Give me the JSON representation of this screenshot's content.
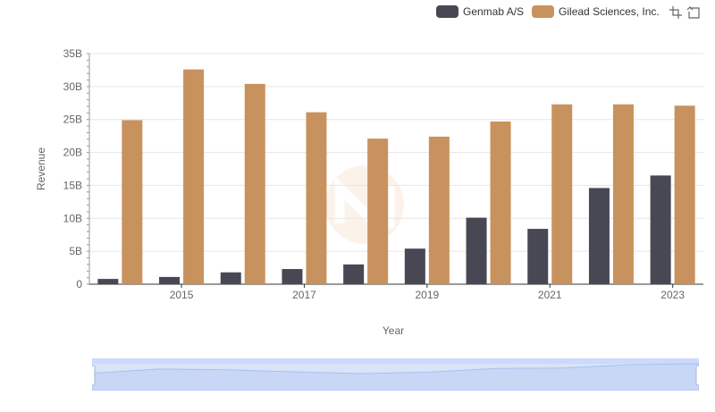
{
  "legend": [
    {
      "name": "Genmab A/S",
      "color": "#484855"
    },
    {
      "name": "Gilead Sciences, Inc.",
      "color": "#c8925e"
    }
  ],
  "toolbox": {
    "icons": [
      "zoom-icon",
      "restore-icon"
    ]
  },
  "chart_data": {
    "type": "bar",
    "title": "",
    "xlabel": "Year",
    "ylabel": "Revenue",
    "categories": [
      "2014",
      "2015",
      "2016",
      "2017",
      "2018",
      "2019",
      "2020",
      "2021",
      "2022",
      "2023"
    ],
    "x_tick_labels": [
      "2015",
      "2017",
      "2019",
      "2021",
      "2023"
    ],
    "y_ticks": [
      0,
      5,
      10,
      15,
      20,
      25,
      30,
      35
    ],
    "y_tick_labels": [
      "0",
      "5B",
      "10B",
      "15B",
      "20B",
      "25B",
      "30B",
      "35B"
    ],
    "ylim": [
      0,
      35
    ],
    "unit": "billions",
    "grid": true,
    "legend_position": "top-right",
    "series": [
      {
        "name": "Genmab A/S",
        "color": "#484855",
        "values": [
          0.8,
          1.1,
          1.8,
          2.3,
          3.0,
          5.4,
          10.1,
          8.4,
          14.6,
          16.5
        ]
      },
      {
        "name": "Gilead Sciences, Inc.",
        "color": "#c8925e",
        "values": [
          24.9,
          32.6,
          30.4,
          26.1,
          22.1,
          22.4,
          24.7,
          27.3,
          27.3,
          27.1
        ]
      }
    ]
  }
}
